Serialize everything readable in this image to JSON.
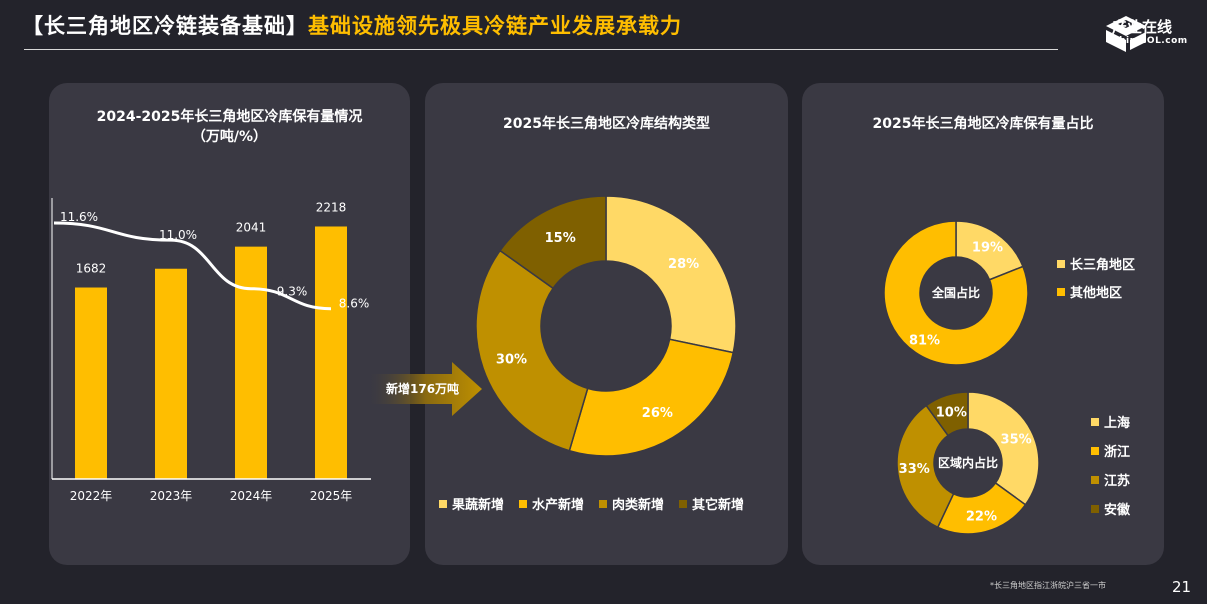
{
  "header": {
    "title_part1": "【长三角地区冷链装备基础】",
    "title_part2": "基础设施领先极具冷链产业发展承载力",
    "logo_text": "产业在线",
    "logo_sub": "ChinaIOL.com"
  },
  "colors": {
    "background": "#23232b",
    "panel": "#3a3943",
    "accent": "#ffbe00",
    "light_gold": "#ffd966",
    "dark_gold": "#bf9000",
    "brown": "#7f6000"
  },
  "arrow_label": "新增176万吨",
  "footnote": "*长三角地区指江浙皖沪三省一市",
  "page_number": "21",
  "chart_data": [
    {
      "type": "bar",
      "title": "2024-2025年长三角地区冷库保有量情况",
      "subtitle": "（万吨/%）",
      "categories": [
        "2022年",
        "2023年",
        "2024年",
        "2025年"
      ],
      "values": [
        1682,
        1847,
        2041,
        2218
      ],
      "value_labels": [
        "1682",
        "",
        "2041",
        "2218"
      ],
      "line": {
        "values": [
          11.6,
          11.0,
          9.3,
          8.6
        ],
        "labels": [
          "11.6%",
          "11.0%",
          "9.3%",
          "8.6%"
        ]
      },
      "ylim": [
        0,
        2600
      ],
      "line_ylim": [
        6,
        13
      ],
      "grid": false
    },
    {
      "type": "pie",
      "title": "2025年长三角地区冷库结构类型",
      "labels": [
        "果蔬新增",
        "水产新增",
        "肉类新增",
        "其它新增"
      ],
      "values": [
        28,
        26,
        30,
        15
      ],
      "value_labels": [
        "28%",
        "26%",
        "30%",
        "15%"
      ],
      "legend": "bottom"
    },
    {
      "type": "pie",
      "title": "2025年长三角地区冷库保有量占比",
      "center_label": "全国占比",
      "labels": [
        "长三角地区",
        "其他地区"
      ],
      "values": [
        19,
        81
      ],
      "value_labels": [
        "19%",
        "81%"
      ],
      "legend": "right"
    },
    {
      "type": "pie",
      "center_label": "区域内占比",
      "labels": [
        "上海",
        "浙江",
        "江苏",
        "安徽"
      ],
      "values": [
        35,
        22,
        33,
        10
      ],
      "value_labels": [
        "35%",
        "22%",
        "33%",
        "10%"
      ],
      "legend": "right"
    }
  ]
}
